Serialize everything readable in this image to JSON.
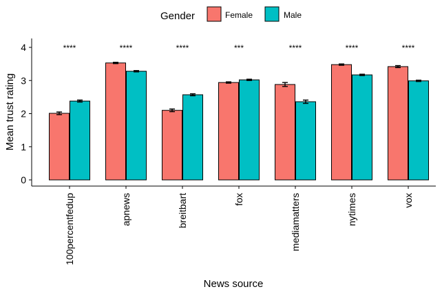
{
  "chart_data": {
    "type": "bar",
    "xlabel": "News source",
    "ylabel": "Mean trust rating",
    "ylim": [
      0,
      4
    ],
    "yticks": [
      0,
      1,
      2,
      3,
      4
    ],
    "legend": {
      "title": "Gender",
      "placement": "top"
    },
    "categories": [
      "100percentfedup",
      "apnews",
      "breitbart",
      "fox",
      "mediamatters",
      "nytimes",
      "vox"
    ],
    "series": [
      {
        "name": "Female",
        "color": "#F8766D",
        "values": [
          2.01,
          3.53,
          2.1,
          2.94,
          2.88,
          3.48,
          3.42
        ],
        "errors": [
          0.04,
          0.02,
          0.04,
          0.02,
          0.06,
          0.02,
          0.03
        ]
      },
      {
        "name": "Male",
        "color": "#00BFC4",
        "values": [
          2.38,
          3.28,
          2.57,
          3.02,
          2.36,
          3.17,
          2.99
        ],
        "errors": [
          0.03,
          0.02,
          0.03,
          0.02,
          0.05,
          0.02,
          0.02
        ]
      }
    ],
    "significance": [
      "****",
      "****",
      "****",
      "***",
      "****",
      "****",
      "****"
    ]
  }
}
